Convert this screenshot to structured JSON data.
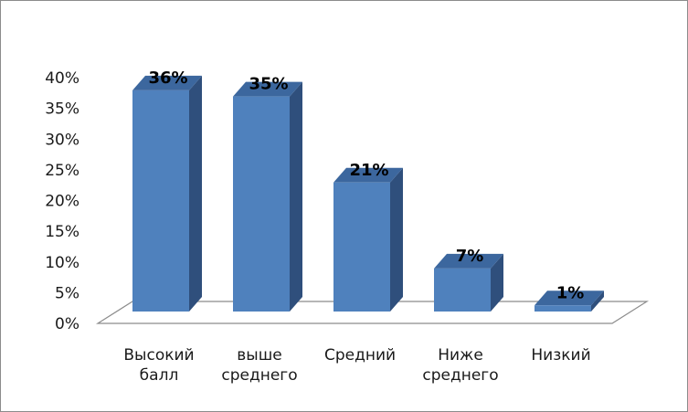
{
  "chart_data": {
    "type": "bar",
    "categories": [
      [
        "Высокий",
        "балл"
      ],
      [
        "выше",
        "среднего"
      ],
      [
        "Средний"
      ],
      [
        "Ниже",
        "среднего"
      ],
      [
        "Низкий"
      ]
    ],
    "values": [
      36,
      35,
      21,
      7,
      1
    ],
    "data_labels": [
      "36%",
      "35%",
      "21%",
      "7%",
      "1%"
    ],
    "y_ticks": [
      "0%",
      "5%",
      "10%",
      "15%",
      "20%",
      "25%",
      "30%",
      "35%",
      "40%"
    ],
    "ylim": [
      0,
      40
    ],
    "title": "",
    "xlabel": "",
    "ylabel": "",
    "grid": false,
    "legend": "none",
    "style": "3d-column",
    "colors": {
      "bar_front": "#4f81bd",
      "bar_side": "#2f4f7c",
      "bar_top": "#3c679e",
      "floor": "#ffffff",
      "floor_edge": "#8c8c8c"
    }
  }
}
